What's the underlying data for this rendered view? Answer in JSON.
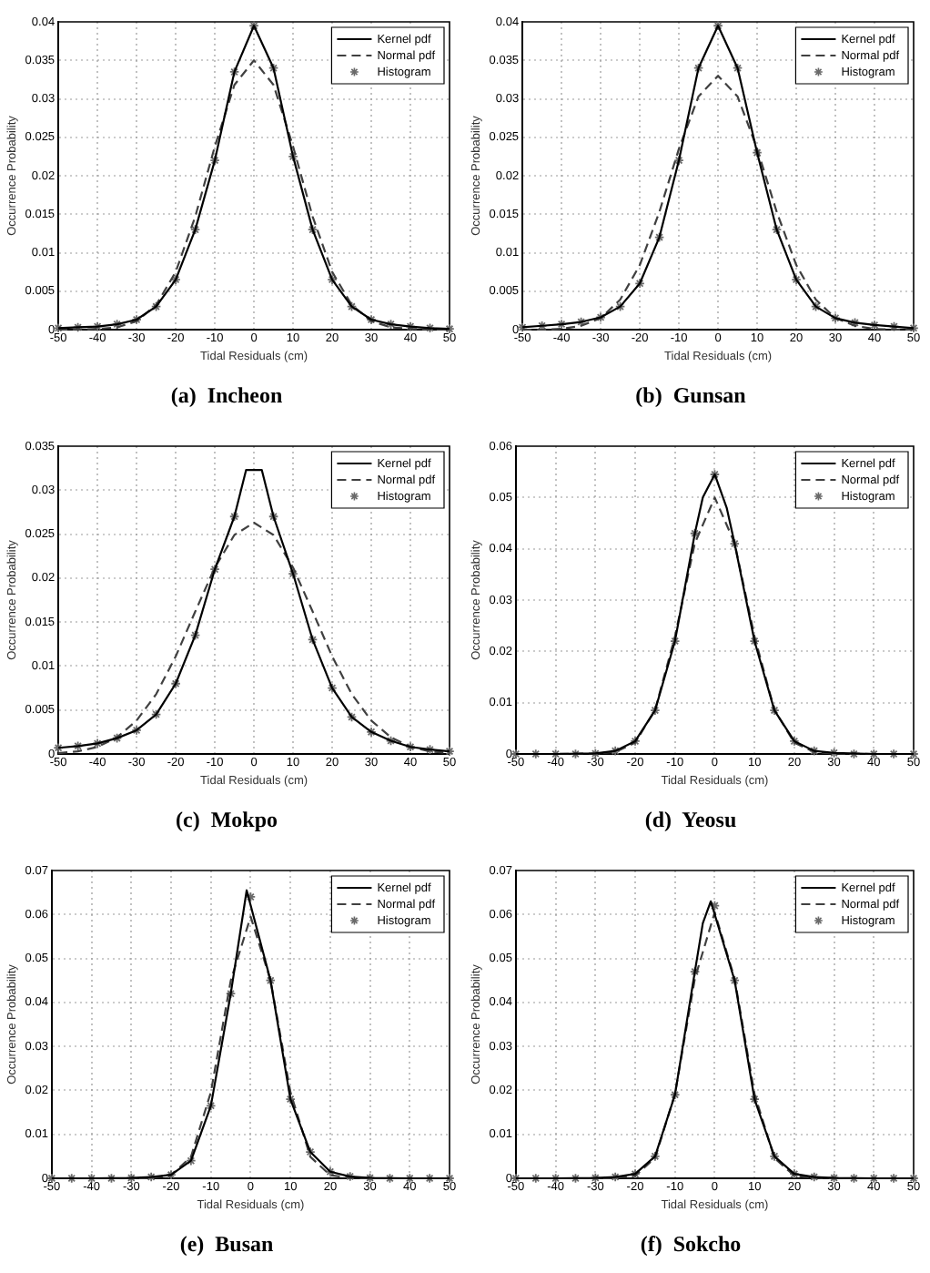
{
  "chart_data": [
    {
      "type": "line",
      "title": "(a)  Incheon",
      "xlabel": "Tidal Residuals (cm)",
      "ylabel": "Occurrence Probability",
      "xlim": [
        -50,
        50
      ],
      "xticks": [
        -50,
        -40,
        -30,
        -20,
        -10,
        0,
        10,
        20,
        30,
        40,
        50
      ],
      "ylim": [
        0,
        0.04
      ],
      "yticks": [
        0,
        0.005,
        0.01,
        0.015,
        0.02,
        0.025,
        0.03,
        0.035,
        0.04
      ],
      "grid": true,
      "legend": "top right",
      "series": [
        {
          "name": "Kernel pdf",
          "color": "#000000",
          "line_style": "solid",
          "x": [
            -50,
            -45,
            -40,
            -35,
            -30,
            -25,
            -20,
            -15,
            -10,
            -5,
            0,
            5,
            10,
            15,
            20,
            25,
            30,
            35,
            40,
            45,
            50
          ],
          "values": [
            0.0002,
            0.0003,
            0.0004,
            0.0007,
            0.0013,
            0.003,
            0.0065,
            0.013,
            0.022,
            0.0335,
            0.0395,
            0.034,
            0.0225,
            0.013,
            0.0065,
            0.003,
            0.0013,
            0.0007,
            0.0004,
            0.0002,
            0.0001
          ]
        },
        {
          "name": "Normal pdf",
          "color": "#404040",
          "line_style": "dashed",
          "x": [
            -50,
            -45,
            -40,
            -35,
            -30,
            -25,
            -20,
            -15,
            -10,
            -5,
            0,
            5,
            10,
            15,
            20,
            25,
            30,
            35,
            40,
            45,
            50
          ],
          "values": [
            0,
            0,
            0.0001,
            0.0003,
            0.0011,
            0.0032,
            0.0075,
            0.0147,
            0.0238,
            0.0318,
            0.035,
            0.0318,
            0.0238,
            0.0147,
            0.0075,
            0.0032,
            0.0011,
            0.0003,
            0.0001,
            0,
            0
          ]
        },
        {
          "name": "Histogram",
          "type": "scatter",
          "marker": "cross",
          "color": "#6a6a6a",
          "x": [
            -50,
            -45,
            -40,
            -35,
            -30,
            -25,
            -20,
            -15,
            -10,
            -5,
            0,
            5,
            10,
            15,
            20,
            25,
            30,
            35,
            40,
            45,
            50
          ],
          "values": [
            0.0002,
            0.0003,
            0.0004,
            0.0007,
            0.0013,
            0.003,
            0.0065,
            0.013,
            0.022,
            0.0335,
            0.0395,
            0.034,
            0.0225,
            0.013,
            0.0065,
            0.003,
            0.0013,
            0.0007,
            0.0004,
            0.0002,
            0.0001
          ]
        }
      ]
    },
    {
      "type": "line",
      "title": "(b)  Gunsan",
      "xlabel": "Tidal Residuals (cm)",
      "ylabel": "Occurrence Probability",
      "xlim": [
        -50,
        50
      ],
      "xticks": [
        -50,
        -40,
        -30,
        -20,
        -10,
        0,
        10,
        20,
        30,
        40,
        50
      ],
      "ylim": [
        0,
        0.04
      ],
      "yticks": [
        0,
        0.005,
        0.01,
        0.015,
        0.02,
        0.025,
        0.03,
        0.035,
        0.04
      ],
      "grid": true,
      "legend": "top right",
      "series": [
        {
          "name": "Kernel pdf",
          "color": "#000000",
          "line_style": "solid",
          "x": [
            -50,
            -45,
            -40,
            -35,
            -30,
            -25,
            -20,
            -15,
            -10,
            -5,
            0,
            5,
            10,
            15,
            20,
            25,
            30,
            35,
            40,
            45,
            50
          ],
          "values": [
            0.0003,
            0.0005,
            0.0007,
            0.001,
            0.0016,
            0.003,
            0.006,
            0.012,
            0.022,
            0.034,
            0.0395,
            0.034,
            0.023,
            0.013,
            0.0065,
            0.003,
            0.0015,
            0.0009,
            0.0006,
            0.0004,
            0.0002
          ]
        },
        {
          "name": "Normal pdf",
          "color": "#404040",
          "line_style": "dashed",
          "x": [
            -50,
            -45,
            -40,
            -35,
            -30,
            -25,
            -20,
            -15,
            -10,
            -5,
            0,
            5,
            10,
            15,
            20,
            25,
            30,
            35,
            40,
            45,
            50
          ],
          "values": [
            0,
            0,
            0.0001,
            0.0005,
            0.0015,
            0.0039,
            0.0084,
            0.0153,
            0.0235,
            0.0303,
            0.033,
            0.0303,
            0.0235,
            0.0153,
            0.0084,
            0.0039,
            0.0015,
            0.0005,
            0.0001,
            0,
            0
          ]
        },
        {
          "name": "Histogram",
          "type": "scatter",
          "marker": "cross",
          "color": "#6a6a6a",
          "x": [
            -50,
            -45,
            -40,
            -35,
            -30,
            -25,
            -20,
            -15,
            -10,
            -5,
            0,
            5,
            10,
            15,
            20,
            25,
            30,
            35,
            40,
            45,
            50
          ],
          "values": [
            0.0003,
            0.0005,
            0.0007,
            0.001,
            0.0016,
            0.003,
            0.006,
            0.012,
            0.022,
            0.034,
            0.0395,
            0.034,
            0.023,
            0.013,
            0.0065,
            0.003,
            0.0015,
            0.0009,
            0.0006,
            0.0004,
            0.0002
          ]
        }
      ]
    },
    {
      "type": "line",
      "title": "(c)  Mokpo",
      "xlabel": "Tidal Residuals (cm)",
      "ylabel": "Occurrence Probability",
      "xlim": [
        -50,
        50
      ],
      "xticks": [
        -50,
        -40,
        -30,
        -20,
        -10,
        0,
        10,
        20,
        30,
        40,
        50
      ],
      "ylim": [
        0,
        0.035
      ],
      "yticks": [
        0,
        0.005,
        0.01,
        0.015,
        0.02,
        0.025,
        0.03,
        0.035
      ],
      "grid": true,
      "legend": "top right",
      "series": [
        {
          "name": "Kernel pdf",
          "color": "#000000",
          "line_style": "solid",
          "x": [
            -50,
            -45,
            -40,
            -35,
            -30,
            -25,
            -20,
            -15,
            -10,
            -5,
            -2,
            2,
            5,
            10,
            15,
            20,
            25,
            30,
            35,
            40,
            45,
            50
          ],
          "values": [
            0.0007,
            0.0009,
            0.0012,
            0.0018,
            0.0027,
            0.0045,
            0.008,
            0.0135,
            0.021,
            0.027,
            0.0323,
            0.0323,
            0.027,
            0.0205,
            0.013,
            0.0075,
            0.0042,
            0.0025,
            0.0015,
            0.0008,
            0.0005,
            0.0003
          ]
        },
        {
          "name": "Normal pdf",
          "color": "#404040",
          "line_style": "dashed",
          "x": [
            -50,
            -45,
            -40,
            -35,
            -30,
            -25,
            -20,
            -15,
            -10,
            -5,
            0,
            5,
            10,
            15,
            20,
            25,
            30,
            35,
            40,
            45,
            50
          ],
          "values": [
            0.0001,
            0.0003,
            0.0008,
            0.0019,
            0.0038,
            0.0068,
            0.0111,
            0.0162,
            0.0212,
            0.0249,
            0.0263,
            0.0249,
            0.0212,
            0.0162,
            0.0111,
            0.0068,
            0.0038,
            0.0019,
            0.0008,
            0.0003,
            0.0001
          ]
        },
        {
          "name": "Histogram",
          "type": "scatter",
          "marker": "cross",
          "color": "#6a6a6a",
          "x": [
            -50,
            -45,
            -40,
            -35,
            -30,
            -25,
            -20,
            -15,
            -10,
            -5,
            5,
            10,
            15,
            20,
            25,
            30,
            35,
            40,
            45,
            50
          ],
          "values": [
            0.0007,
            0.0009,
            0.0012,
            0.0018,
            0.0027,
            0.0045,
            0.008,
            0.0135,
            0.021,
            0.027,
            0.027,
            0.0205,
            0.013,
            0.0075,
            0.0042,
            0.0025,
            0.0015,
            0.0008,
            0.0005,
            0.0003
          ]
        }
      ]
    },
    {
      "type": "line",
      "title": "(d)  Yeosu",
      "xlabel": "Tidal Residuals (cm)",
      "ylabel": "Occurrence Probability",
      "xlim": [
        -50,
        50
      ],
      "xticks": [
        -50,
        -40,
        -30,
        -20,
        -10,
        0,
        10,
        20,
        30,
        40,
        50
      ],
      "ylim": [
        0,
        0.06
      ],
      "yticks": [
        0,
        0.01,
        0.02,
        0.03,
        0.04,
        0.05,
        0.06
      ],
      "grid": true,
      "legend": "top right",
      "series": [
        {
          "name": "Kernel pdf",
          "color": "#000000",
          "line_style": "solid",
          "x": [
            -50,
            -40,
            -30,
            -25,
            -20,
            -15,
            -10,
            -5,
            -3,
            0,
            3,
            5,
            10,
            15,
            20,
            25,
            30,
            40,
            50
          ],
          "values": [
            0,
            0,
            0.0001,
            0.0006,
            0.0025,
            0.0085,
            0.022,
            0.043,
            0.05,
            0.0545,
            0.048,
            0.041,
            0.022,
            0.0085,
            0.0025,
            0.0006,
            0.0002,
            0,
            0
          ]
        },
        {
          "name": "Normal pdf",
          "color": "#404040",
          "line_style": "dashed",
          "x": [
            -50,
            -40,
            -30,
            -25,
            -20,
            -15,
            -10,
            -5,
            0,
            5,
            10,
            15,
            20,
            25,
            30,
            40,
            50
          ],
          "values": [
            0,
            0,
            0.0001,
            0.0004,
            0.0022,
            0.0086,
            0.0229,
            0.0411,
            0.05,
            0.0411,
            0.0229,
            0.0086,
            0.0022,
            0.0004,
            0.0001,
            0,
            0
          ]
        },
        {
          "name": "Histogram",
          "type": "scatter",
          "marker": "cross",
          "color": "#6a6a6a",
          "x": [
            -50,
            -45,
            -40,
            -35,
            -30,
            -25,
            -20,
            -15,
            -10,
            -5,
            0,
            5,
            10,
            15,
            20,
            25,
            30,
            35,
            40,
            45,
            50
          ],
          "values": [
            0,
            0,
            0,
            0,
            0.0001,
            0.0006,
            0.0025,
            0.0085,
            0.022,
            0.043,
            0.0545,
            0.041,
            0.022,
            0.0085,
            0.0025,
            0.0006,
            0.0002,
            0,
            0,
            0,
            0
          ]
        }
      ]
    },
    {
      "type": "line",
      "title": "(e)  Busan",
      "xlabel": "Tidal Residuals (cm)",
      "ylabel": "Occurrence Probability",
      "xlim": [
        -50,
        50
      ],
      "xticks": [
        -50,
        -40,
        -30,
        -20,
        -10,
        0,
        10,
        20,
        30,
        40,
        50
      ],
      "ylim": [
        0,
        0.07
      ],
      "yticks": [
        0,
        0.01,
        0.02,
        0.03,
        0.04,
        0.05,
        0.06,
        0.07
      ],
      "grid": true,
      "legend": "top right",
      "series": [
        {
          "name": "Kernel pdf",
          "color": "#000000",
          "line_style": "solid",
          "x": [
            -50,
            -40,
            -30,
            -25,
            -20,
            -15,
            -10,
            -5,
            -1,
            5,
            10,
            15,
            20,
            25,
            30,
            40,
            50
          ],
          "values": [
            0,
            0,
            0.0001,
            0.0003,
            0.0008,
            0.004,
            0.0165,
            0.042,
            0.0655,
            0.045,
            0.018,
            0.006,
            0.0015,
            0.0004,
            0.0001,
            0,
            0
          ]
        },
        {
          "name": "Normal pdf",
          "color": "#404040",
          "line_style": "dashed",
          "x": [
            -50,
            -40,
            -30,
            -25,
            -20,
            -15,
            -10,
            -5,
            0,
            5,
            10,
            15,
            20,
            25,
            30,
            40,
            50
          ],
          "values": [
            0,
            0,
            0,
            0.0001,
            0.0007,
            0.0049,
            0.0196,
            0.045,
            0.0595,
            0.045,
            0.0196,
            0.0049,
            0.0007,
            0.0001,
            0,
            0,
            0
          ]
        },
        {
          "name": "Histogram",
          "type": "scatter",
          "marker": "cross",
          "color": "#6a6a6a",
          "x": [
            -50,
            -45,
            -40,
            -35,
            -30,
            -25,
            -20,
            -15,
            -10,
            -5,
            0,
            5,
            10,
            15,
            20,
            25,
            30,
            35,
            40,
            45,
            50
          ],
          "values": [
            0,
            0,
            0,
            0,
            0.0001,
            0.0003,
            0.0008,
            0.004,
            0.0165,
            0.042,
            0.064,
            0.045,
            0.018,
            0.006,
            0.0015,
            0.0004,
            0.0001,
            0,
            0,
            0,
            0
          ]
        }
      ]
    },
    {
      "type": "line",
      "title": "(f)  Sokcho",
      "xlabel": "Tidal Residuals (cm)",
      "ylabel": "Occurrence Probability",
      "xlim": [
        -50,
        50
      ],
      "xticks": [
        -50,
        -40,
        -30,
        -20,
        -10,
        0,
        10,
        20,
        30,
        40,
        50
      ],
      "ylim": [
        0,
        0.07
      ],
      "yticks": [
        0,
        0.01,
        0.02,
        0.03,
        0.04,
        0.05,
        0.06,
        0.07
      ],
      "grid": true,
      "legend": "top right",
      "series": [
        {
          "name": "Kernel pdf",
          "color": "#000000",
          "line_style": "solid",
          "x": [
            -50,
            -40,
            -30,
            -25,
            -20,
            -15,
            -10,
            -5,
            -3,
            -1,
            5,
            10,
            15,
            20,
            25,
            30,
            40,
            50
          ],
          "values": [
            0,
            0,
            0.0001,
            0.0003,
            0.001,
            0.005,
            0.019,
            0.047,
            0.058,
            0.063,
            0.045,
            0.018,
            0.005,
            0.001,
            0.0003,
            0.0001,
            0,
            0
          ]
        },
        {
          "name": "Normal pdf",
          "color": "#404040",
          "line_style": "dashed",
          "x": [
            -50,
            -40,
            -30,
            -25,
            -20,
            -15,
            -10,
            -5,
            0,
            5,
            10,
            15,
            20,
            25,
            30,
            40,
            50
          ],
          "values": [
            0,
            0,
            0,
            0.0001,
            0.0006,
            0.0046,
            0.0192,
            0.0454,
            0.0605,
            0.0454,
            0.0192,
            0.0046,
            0.0006,
            0.0001,
            0,
            0,
            0
          ]
        },
        {
          "name": "Histogram",
          "type": "scatter",
          "marker": "cross",
          "color": "#6a6a6a",
          "x": [
            -50,
            -45,
            -40,
            -35,
            -30,
            -25,
            -20,
            -15,
            -10,
            -5,
            0,
            5,
            10,
            15,
            20,
            25,
            30,
            35,
            40,
            45,
            50
          ],
          "values": [
            0,
            0,
            0,
            0,
            0.0001,
            0.0003,
            0.001,
            0.005,
            0.019,
            0.047,
            0.062,
            0.045,
            0.018,
            0.005,
            0.001,
            0.0003,
            0.0001,
            0,
            0,
            0,
            0
          ]
        }
      ]
    }
  ]
}
